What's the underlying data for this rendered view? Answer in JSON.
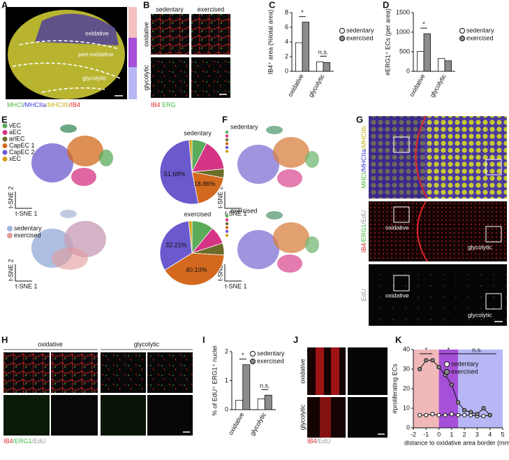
{
  "panel_labels": [
    "A",
    "B",
    "C",
    "D",
    "E",
    "F",
    "G",
    "H",
    "I",
    "J",
    "K"
  ],
  "panel_a": {
    "regions": [
      "oxidative",
      "peri-oxidative",
      "glycolytic"
    ],
    "stain": [
      {
        "text": "MHCI",
        "color": "#4fb83a"
      },
      {
        "text": "/MHCIIa",
        "color": "#3b3bd6"
      },
      {
        "text": "/MHCIIb",
        "color": "#c9b414"
      },
      {
        "text": "/IB4",
        "color": "#e0262a"
      }
    ]
  },
  "panel_b": {
    "columns": [
      "sedentary",
      "exercised"
    ],
    "rows": [
      "oxidative",
      "glycolytic"
    ],
    "stain": [
      {
        "text": "IB4",
        "color": "#e0262a"
      },
      {
        "text": " ERG",
        "color": "#3db83a"
      }
    ]
  },
  "tsne_axes": [
    "t-SNE 1",
    "t-SNE 2"
  ],
  "panel_e": {
    "groups": [
      {
        "name": "sedentary",
        "color": "#9fb4dc"
      },
      {
        "name": "exercised",
        "color": "#e39a9a"
      }
    ]
  },
  "panel_f": {
    "groups": [
      "sedentary",
      "exercised"
    ]
  },
  "panel_g": {
    "stains": [
      [
        {
          "text": "MHCI",
          "color": "#4fb83a"
        },
        {
          "text": "/MHCIIa",
          "color": "#3b3bd6"
        },
        {
          "text": "/MHCIIb",
          "color": "#c9b414"
        }
      ],
      [
        {
          "text": "IB4",
          "color": "#e0262a"
        },
        {
          "text": "/ERG1",
          "color": "#3db83a"
        },
        {
          "text": "/EdU",
          "color": "#999999"
        }
      ],
      [
        {
          "text": "EdU",
          "color": "#999999"
        }
      ]
    ],
    "regions": [
      "oxidative",
      "glycolytic"
    ]
  },
  "panel_h": {
    "columns": [
      "oxidative",
      "glycolytic"
    ],
    "stain": [
      {
        "text": "IB4",
        "color": "#e0262a"
      },
      {
        "text": "/ERG1",
        "color": "#3db83a"
      },
      {
        "text": "/EdU",
        "color": "#999999"
      }
    ]
  },
  "panel_j": {
    "rows": [
      "oxidative",
      "glycolytic"
    ],
    "stain": [
      {
        "text": "IB4",
        "color": "#e0262a"
      },
      {
        "text": "/EdU",
        "color": "#999999"
      }
    ]
  },
  "chart_data": [
    {
      "type": "bar",
      "y_label": "IB4⁺ area (%total area)",
      "categories": [
        "oxidative",
        "glycolytic"
      ],
      "series": [
        {
          "name": "sedentary",
          "color": "#ffffff",
          "values": [
            3.9,
            1.3
          ]
        },
        {
          "name": "exercised",
          "color": "#8c8c8c",
          "values": [
            6.7,
            1.2
          ]
        }
      ],
      "ylim": [
        0,
        8
      ],
      "yticks": [
        0,
        2,
        4,
        6,
        8
      ],
      "annotations": [
        "*",
        "n.s."
      ]
    },
    {
      "type": "bar",
      "y_label": "#ERG1⁺ ECs (per area)",
      "categories": [
        "oxidative",
        "glycolytic"
      ],
      "series": [
        {
          "name": "sedentary",
          "color": "#ffffff",
          "values": [
            510,
            330
          ]
        },
        {
          "name": "exercised",
          "color": "#8c8c8c",
          "values": [
            960,
            270
          ]
        }
      ],
      "ylim": [
        0,
        1500
      ],
      "yticks": [
        0,
        500,
        1000,
        1500
      ],
      "annotations": [
        "*"
      ]
    },
    {
      "type": "pie",
      "categories": [
        "vEC",
        "aEC",
        "arlEC",
        "CapEC 1",
        "CapEC 2",
        "xEC"
      ],
      "colors": [
        "#5aab5a",
        "#d63384",
        "#6b6b2a",
        "#d2691e",
        "#6a5acd",
        "#d4a017"
      ],
      "series": [
        {
          "name": "sedentary",
          "values": [
            7.5,
            15.96,
            4.5,
            18.86,
            51.68,
            1.5
          ],
          "value_labels": [
            null,
            null,
            null,
            "18.86%",
            "51.68%",
            null
          ]
        },
        {
          "name": "exercised",
          "values": [
            11,
            9,
            6,
            40.1,
            32.21,
            1.69
          ],
          "value_labels": [
            null,
            null,
            null,
            "40.10%",
            "32.21%",
            null
          ]
        }
      ]
    },
    {
      "type": "bar",
      "y_label": "% of EdU⁺ ERG1⁺ nuclei",
      "categories": [
        "oxidative",
        "glycolytic"
      ],
      "series": [
        {
          "name": "sedentary",
          "color": "#ffffff",
          "values": [
            0.32,
            0.37
          ]
        },
        {
          "name": "exercised",
          "color": "#8c8c8c",
          "values": [
            1.55,
            0.5
          ]
        }
      ],
      "ylim": [
        0,
        2
      ],
      "yticks": [
        0,
        1,
        2
      ],
      "annotations": [
        "*",
        "n.s."
      ]
    },
    {
      "type": "line",
      "x_label": "distance to oxidative area border (mm)",
      "y_label": "#proliferating ECs",
      "x": [
        -1.5,
        -1,
        -0.5,
        0,
        0.5,
        1,
        1.5,
        2,
        2.5,
        3,
        3.5,
        4
      ],
      "series": [
        {
          "name": "sedentary",
          "color": "#ffffff",
          "values": [
            6.5,
            6.5,
            7,
            6.5,
            6.5,
            7,
            6.5,
            6.5,
            6.5,
            6,
            6,
            6.5
          ]
        },
        {
          "name": "exercised",
          "color": "#8c8c8c",
          "values": [
            30,
            34.5,
            34.5,
            31,
            27,
            22,
            13,
            9,
            8,
            7,
            10,
            6.5
          ]
        }
      ],
      "xlim": [
        -2,
        5
      ],
      "xticks": [
        -2,
        -1,
        0,
        1,
        2,
        3,
        4,
        5
      ],
      "ylim": [
        0,
        40
      ],
      "yticks": [
        0,
        10,
        20,
        30,
        40
      ],
      "bands": [
        {
          "from": -2,
          "to": 0,
          "color": "#f0b8b8"
        },
        {
          "from": 0,
          "to": 1.5,
          "color": "#a64fd8"
        },
        {
          "from": 1.5,
          "to": 5,
          "color": "#b7b7f5"
        }
      ],
      "annotations": [
        "*",
        "*",
        "n.s."
      ]
    }
  ]
}
